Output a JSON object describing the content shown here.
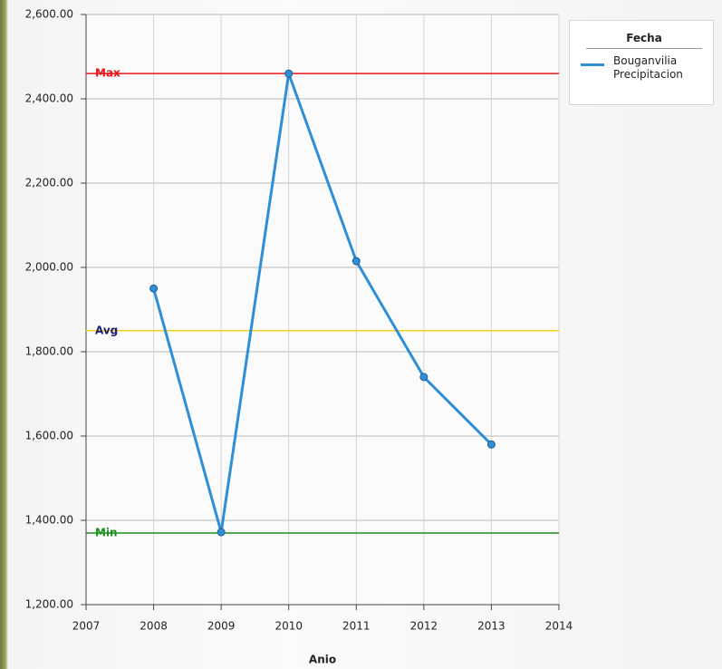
{
  "chart_data": {
    "type": "line",
    "x_label": "Anio",
    "x": [
      2008,
      2009,
      2010,
      2011,
      2012,
      2013
    ],
    "series": [
      {
        "name": "Bouganvilia Precipitacion",
        "color": "#2e8fd8",
        "values": [
          1950,
          1372,
          2460,
          2015,
          1740,
          1580
        ]
      }
    ],
    "xlim": [
      2007,
      2014
    ],
    "xticks": [
      2007,
      2008,
      2009,
      2010,
      2011,
      2012,
      2013,
      2014
    ],
    "ylim": [
      1200,
      2600
    ],
    "yticks": [
      {
        "value": 1200,
        "label": "1,200.00"
      },
      {
        "value": 1400,
        "label": "1,400.00"
      },
      {
        "value": 1600,
        "label": "1,600.00"
      },
      {
        "value": 1800,
        "label": "1,800.00"
      },
      {
        "value": 2000,
        "label": "2,000.00"
      },
      {
        "value": 2200,
        "label": "2,200.00"
      },
      {
        "value": 2400,
        "label": "2,400.00"
      },
      {
        "value": 2600,
        "label": "2,600.00"
      }
    ],
    "grid": true,
    "legend_title": "Fecha",
    "reference_lines": [
      {
        "label": "Max",
        "value": 2460,
        "color": "#e8161b",
        "label_color": "#e8161b"
      },
      {
        "label": "Avg",
        "value": 1850,
        "color": "#f2d21c",
        "label_color": "#1c1c7a"
      },
      {
        "label": "Min",
        "value": 1370,
        "color": "#1f8f1f",
        "label_color": "#1f8f1f"
      }
    ]
  }
}
